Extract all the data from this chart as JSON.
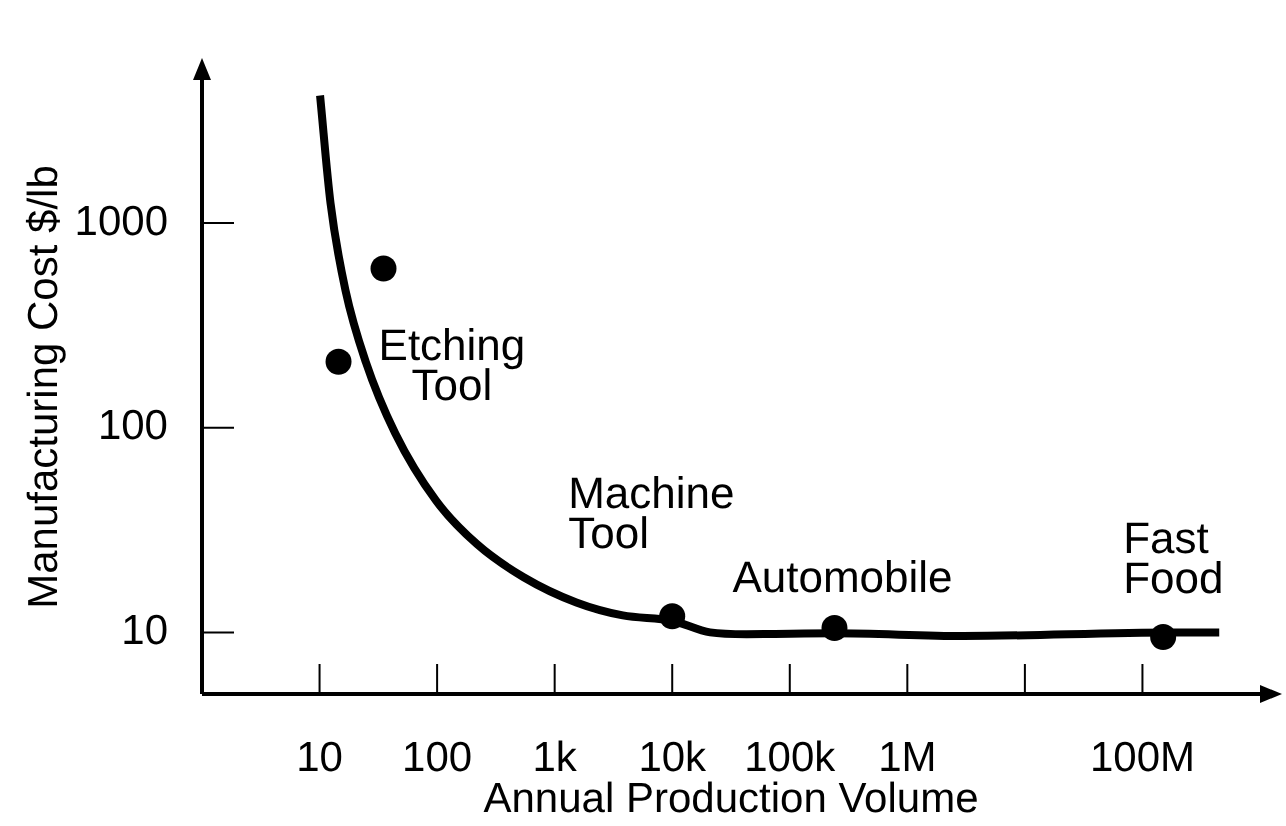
{
  "chart_data": {
    "type": "scatter",
    "xlabel": "Annual Production Volume",
    "ylabel": "Manufacturing Cost $/lb",
    "log": "xy",
    "xlim": [
      1,
      1000000000
    ],
    "ylim": [
      5,
      5000
    ],
    "xticks": [
      10,
      100,
      {
        "value": 1000,
        "label": "1k"
      },
      {
        "value": 10000,
        "label": "10k"
      },
      {
        "value": 100000,
        "label": "100k"
      },
      {
        "value": 1000000,
        "label": "1M"
      },
      {
        "value": 10000000,
        "label": null
      },
      {
        "value": 100000000,
        "label": "100M"
      }
    ],
    "yticks": [
      10,
      100,
      1000
    ],
    "series": [
      {
        "type": "line",
        "color": "#000000",
        "marker": "none",
        "x": [
          10.1,
          12.4,
          16.6,
          24.7,
          44,
          98,
          218,
          545,
          1530,
          3800,
          10000,
          21000,
          43000,
          240000,
          3000000,
          180000000,
          450000000
        ],
        "values": [
          4200,
          1250,
          470,
          210,
          94,
          44,
          27,
          18.6,
          14,
          12.1,
          11.4,
          10,
          9.8,
          9.9,
          9.6,
          10,
          10
        ]
      },
      {
        "color": "#000000",
        "marker": "circle",
        "x": [
          35,
          14.5,
          10000,
          240000,
          150000000
        ],
        "values": [
          600,
          210,
          12,
          10.5,
          9.5
        ]
      }
    ],
    "annotations": [
      {
        "text": "Etching Tool",
        "x": 14.5,
        "y": 210
      },
      {
        "text": "Machine Tool",
        "x": 10000,
        "y": 12
      },
      {
        "text": "Automobile",
        "x": 240000,
        "y": 10.5
      },
      {
        "text": "Fast Food",
        "x": 150000000,
        "y": 9.5
      }
    ]
  }
}
